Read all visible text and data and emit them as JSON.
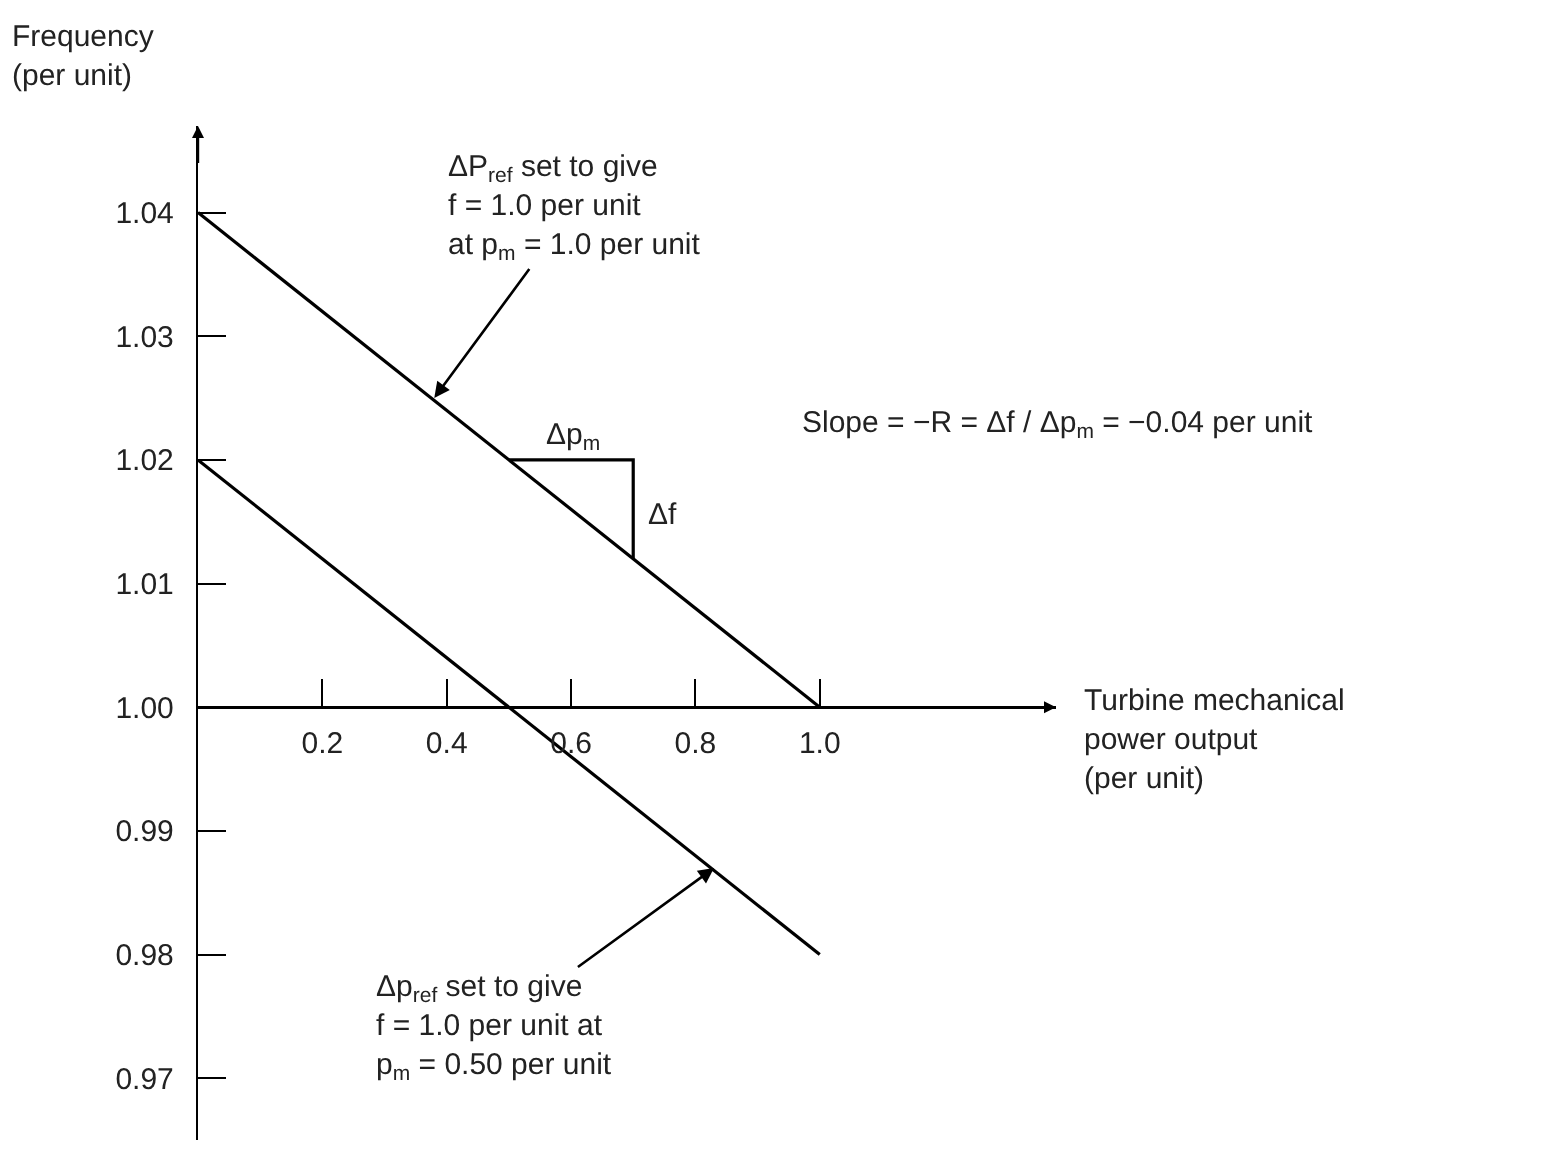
{
  "chart_data": {
    "type": "line",
    "xlabel": "Turbine mechanical\npower output\n(per unit)",
    "ylabel": "Frequency\n(per unit)",
    "x": [
      0,
      1.0
    ],
    "series": [
      {
        "color": "#000000",
        "values": [
          1.04,
          1.0
        ]
      },
      {
        "color": "#000000",
        "x": [
          0,
          1.0
        ],
        "values": [
          1.02,
          0.98
        ]
      },
      {
        "color": "#000000",
        "x": [
          0.5,
          0.7,
          0.7
        ],
        "values": [
          1.02,
          1.02,
          1.012
        ]
      }
    ],
    "xlim": [
      0,
      1.38
    ],
    "ylim": [
      0.965,
      1.047
    ],
    "xticks": [
      0.2,
      0.4,
      0.6,
      0.8,
      {
        "value": 1.0,
        "label": "1.0"
      }
    ],
    "yticks": [
      0.97,
      0.98,
      0.99,
      {
        "value": 1.0,
        "label": "1.00"
      },
      1.01,
      1.02,
      1.03,
      1.04
    ],
    "ref_lines": [
      {
        "axis": "y",
        "value": 1.0
      }
    ],
    "annotations": [
      {
        "text": "ΔP$_{ref}$ set to give\nf = 1.0 per unit\nat p$_{m}$ = 1.0 per unit",
        "x": 0.38,
        "y": 1.025
      },
      {
        "text": "Δp$_{ref}$ set to give\nf = 1.0 per unit at\np$_{m}$ = 0.50 per unit",
        "x": 0.83,
        "y": 0.987
      },
      "Δp$_{m}$",
      "Δf",
      "Slope = −R = Δf / Δp$_{m}$ = −0.04 per unit"
    ],
    "grid": false,
    "marker": "none",
    "line_style": "solid"
  }
}
